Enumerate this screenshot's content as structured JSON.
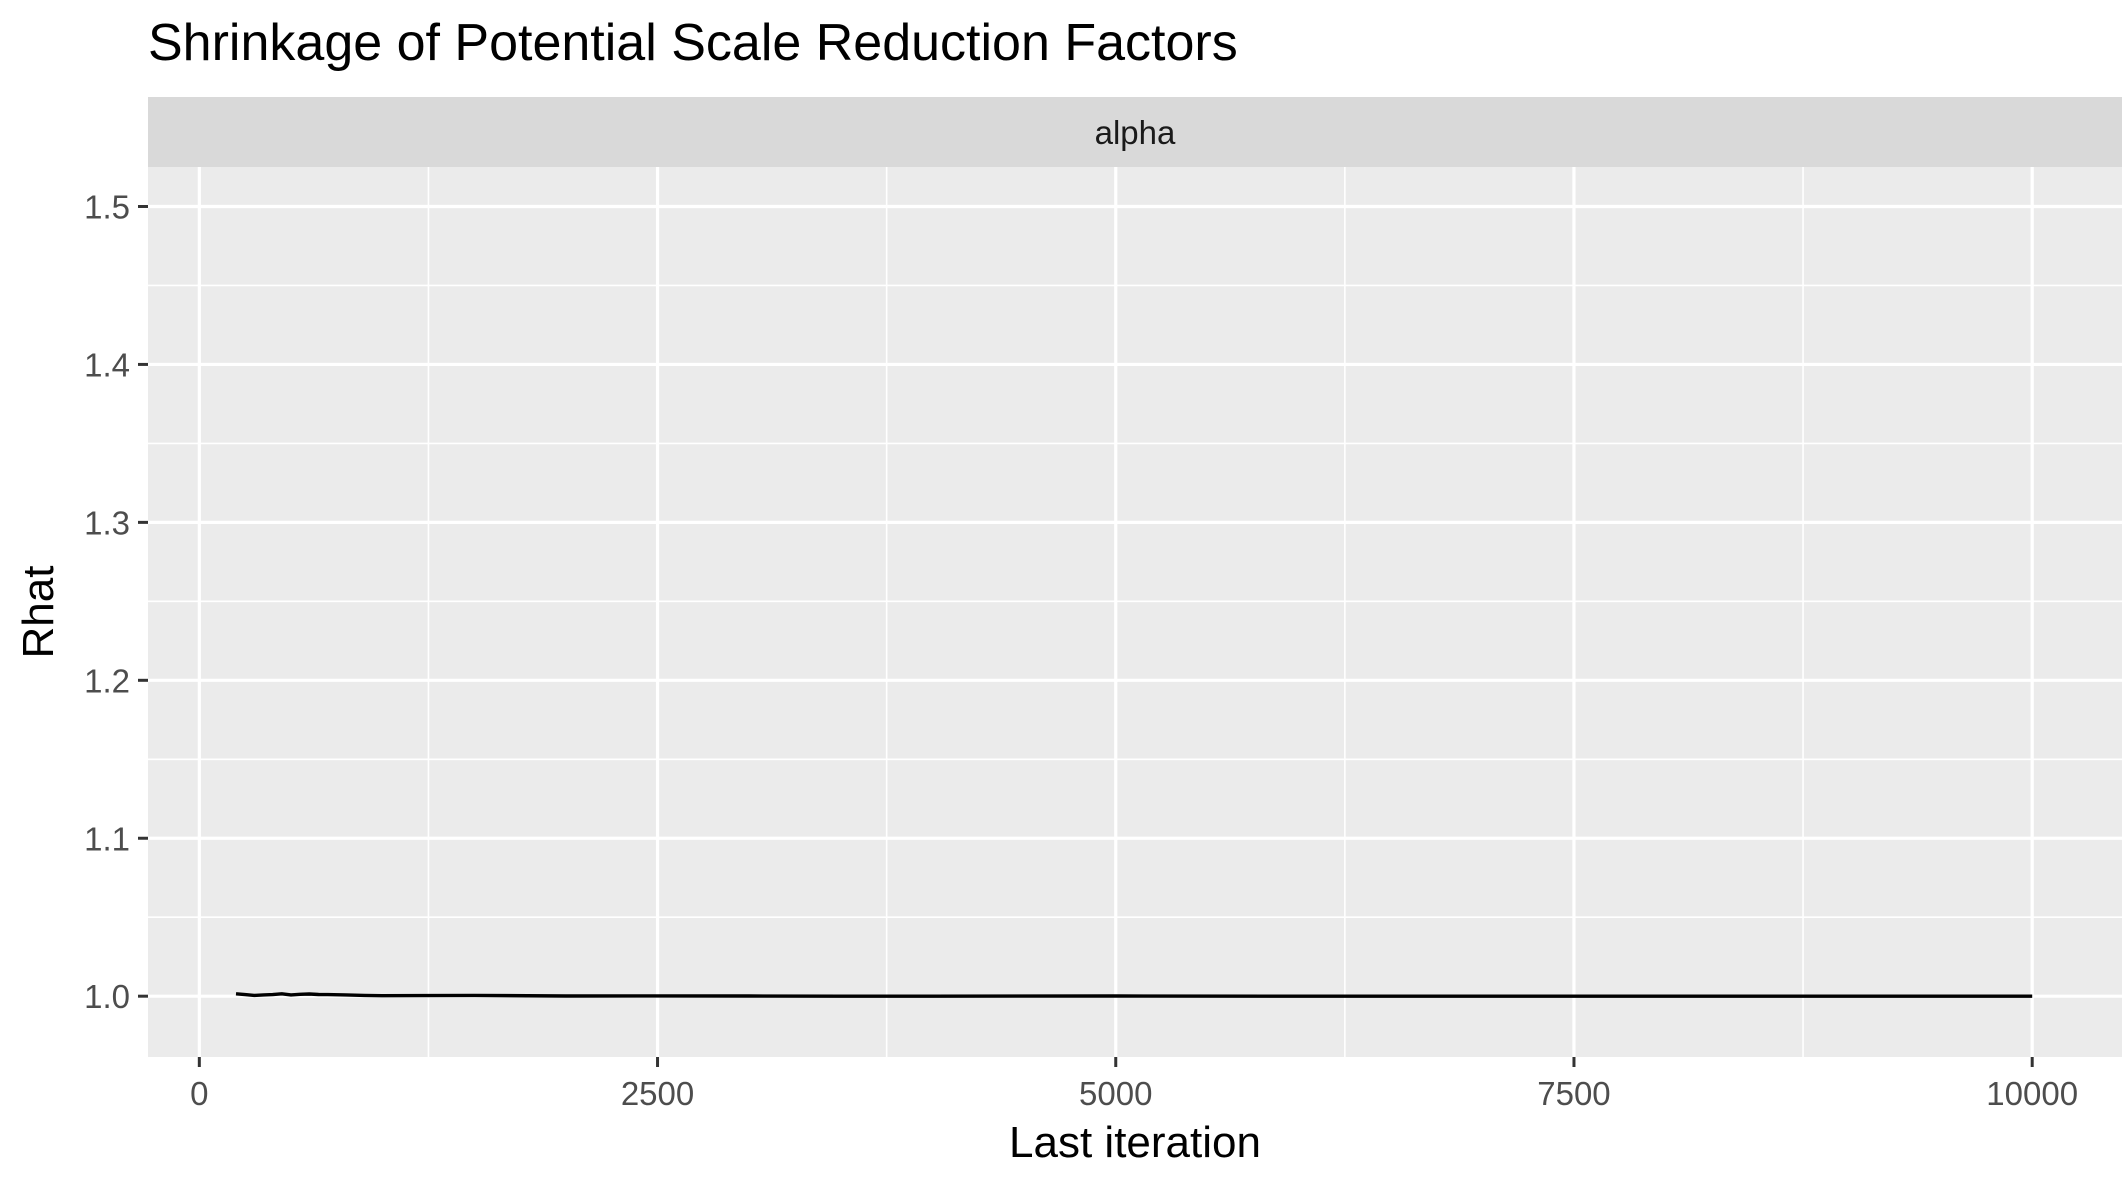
{
  "chart_data": {
    "type": "line",
    "title": "Shrinkage of Potential Scale Reduction Factors",
    "facet_label": "alpha",
    "xlabel": "Last iteration",
    "ylabel": "Rhat",
    "xlim": [
      0,
      10000
    ],
    "ylim": [
      1.0,
      1.5
    ],
    "xticks": [
      0,
      2500,
      5000,
      7500,
      10000
    ],
    "xtick_labels": [
      "0",
      "2500",
      "5000",
      "7500",
      "10000"
    ],
    "yticks": [
      1.0,
      1.1,
      1.2,
      1.3,
      1.4,
      1.5
    ],
    "ytick_labels": [
      "1.0",
      "1.1",
      "1.2",
      "1.3",
      "1.4",
      "1.5"
    ],
    "grid": true,
    "colors": {
      "panel": "#ebebeb",
      "strip": "#d9d9d9",
      "grid": "#ffffff",
      "line": "#000000"
    },
    "series": [
      {
        "x": [
          200,
          250,
          300,
          350,
          400,
          450,
          500,
          550,
          600,
          650,
          700,
          800,
          900,
          1000,
          1200,
          1500,
          2000,
          2500,
          3000,
          3500,
          4000,
          5000,
          6000,
          7000,
          8000,
          9000,
          10000
        ],
        "y": [
          1.0015,
          1.001,
          1.0005,
          1.0008,
          1.001,
          1.0015,
          1.0008,
          1.0012,
          1.0014,
          1.0011,
          1.001,
          1.0008,
          1.0005,
          1.0003,
          1.0004,
          1.0005,
          1.0001,
          1.0002,
          1.0001,
          1.0,
          1.0,
          1.0001,
          1.0,
          1.0,
          1.0,
          1.0,
          1.0
        ]
      }
    ]
  }
}
